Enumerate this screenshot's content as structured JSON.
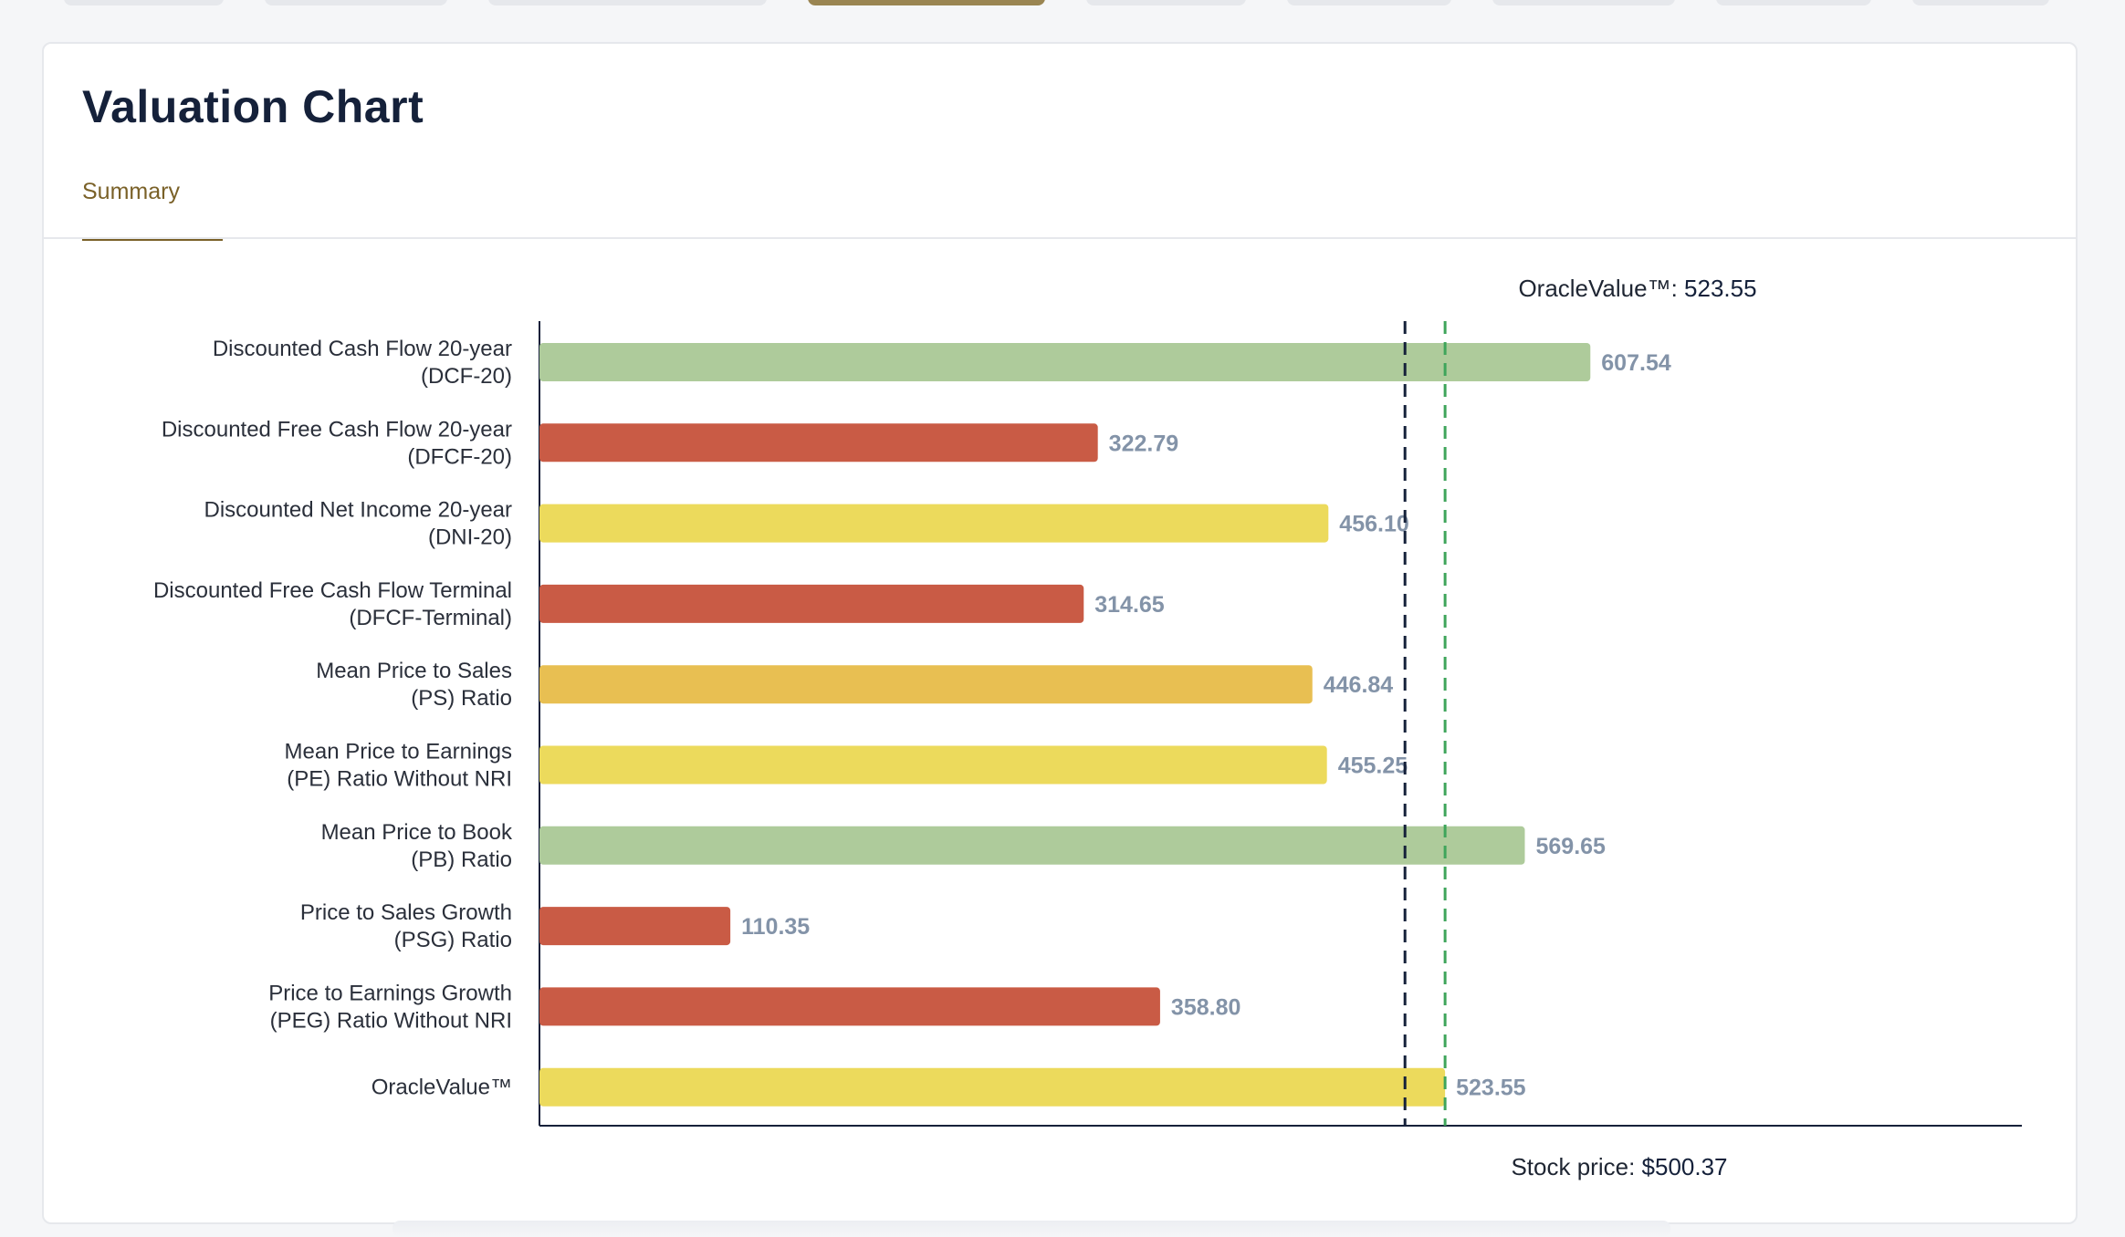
{
  "header": {
    "title": "Valuation Chart"
  },
  "tabs": [
    {
      "label": "Summary",
      "active": true
    }
  ],
  "colors": {
    "green": "#aecb9b",
    "red": "#c95b45",
    "yellow": "#ecda5c",
    "orange": "#e8bf52",
    "stock_line": "#15213a",
    "oracle_line": "#3fa55b",
    "accent": "#7a6128"
  },
  "chart_data": {
    "type": "bar",
    "orientation": "horizontal",
    "title": "Valuation Chart",
    "xlim": [
      0,
      740
    ],
    "bars": [
      {
        "label": [
          "Discounted Cash Flow 20-year",
          "(DCF-20)"
        ],
        "value": 607.54,
        "value_label": "607.54",
        "color": "green"
      },
      {
        "label": [
          "Discounted Free Cash Flow 20-year",
          "(DFCF-20)"
        ],
        "value": 322.79,
        "value_label": "322.79",
        "color": "red"
      },
      {
        "label": [
          "Discounted Net Income 20-year",
          "(DNI-20)"
        ],
        "value": 456.1,
        "value_label": "456.10",
        "color": "yellow"
      },
      {
        "label": [
          "Discounted Free Cash Flow Terminal",
          "(DFCF-Terminal)"
        ],
        "value": 314.65,
        "value_label": "314.65",
        "color": "red"
      },
      {
        "label": [
          "Mean Price to Sales",
          "(PS) Ratio"
        ],
        "value": 446.84,
        "value_label": "446.84",
        "color": "orange"
      },
      {
        "label": [
          "Mean Price to Earnings",
          "(PE) Ratio Without NRI"
        ],
        "value": 455.25,
        "value_label": "455.25",
        "color": "yellow"
      },
      {
        "label": [
          "Mean Price to Book",
          "(PB) Ratio"
        ],
        "value": 569.65,
        "value_label": "569.65",
        "color": "green"
      },
      {
        "label": [
          "Price to Sales Growth",
          "(PSG) Ratio"
        ],
        "value": 110.35,
        "value_label": "110.35",
        "color": "red"
      },
      {
        "label": [
          "Price to Earnings Growth",
          "(PEG) Ratio Without NRI"
        ],
        "value": 358.8,
        "value_label": "358.80",
        "color": "red"
      },
      {
        "label": [
          "OracleValue™"
        ],
        "value": 523.55,
        "value_label": "523.55",
        "color": "yellow"
      }
    ],
    "reference_lines": {
      "oracle_value": {
        "prefix": "OracleValue™: ",
        "value": 523.55,
        "value_label": "523.55",
        "style": "dashed",
        "color": "oracle_line"
      },
      "stock_price": {
        "prefix": "Stock price: ",
        "value": 500.37,
        "value_label": "$500.37",
        "style": "dashed",
        "color": "stock_line"
      }
    }
  }
}
